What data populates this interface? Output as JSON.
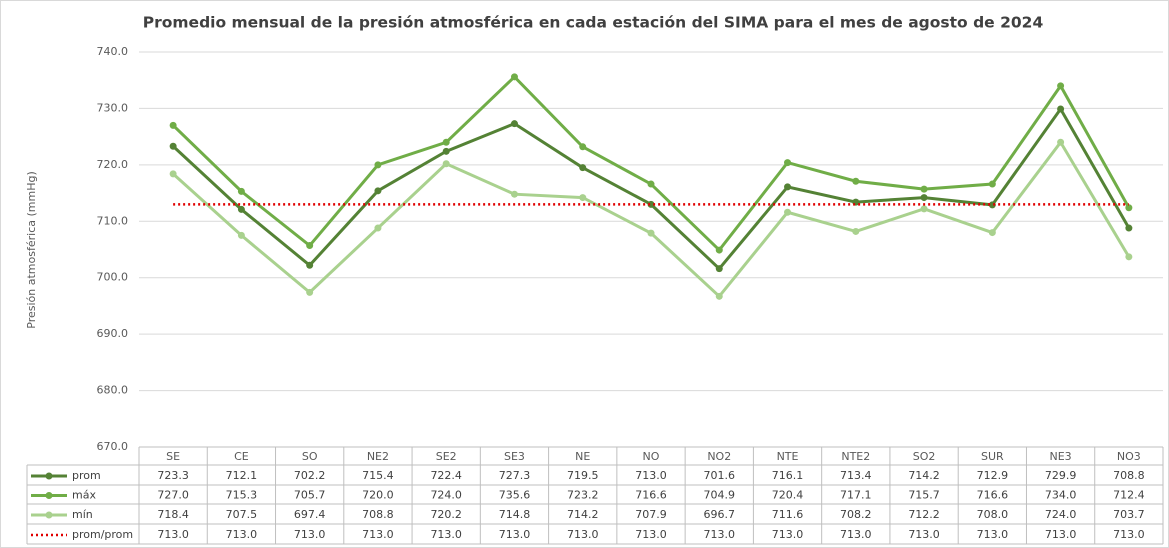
{
  "chart_data": {
    "type": "line",
    "title": "Promedio mensual de la presión atmosférica en cada estación del SIMA para el mes de agosto de 2024",
    "y_label": "Presión atmosférica (mmHg)",
    "categories": [
      "SE",
      "CE",
      "SO",
      "NE2",
      "SE2",
      "SE3",
      "NE",
      "NO",
      "NO2",
      "NTE",
      "NTE2",
      "SO2",
      "SUR",
      "NE3",
      "NO3"
    ],
    "series": [
      {
        "name": "prom",
        "color": "#548235",
        "markers": true,
        "line_style": "solid",
        "values": [
          723.3,
          712.1,
          702.2,
          715.4,
          722.4,
          727.3,
          719.5,
          713.0,
          701.6,
          716.1,
          713.4,
          714.2,
          712.9,
          729.9,
          708.8
        ],
        "value_labels": [
          "723.3",
          "712.1",
          "702.2",
          "715.4",
          "722.4",
          "727.3",
          "719.5",
          "713.0",
          "701.6",
          "716.1",
          "713.4",
          "714.2",
          "712.9",
          "729.9",
          "708.8"
        ]
      },
      {
        "name": "máx",
        "color": "#70ad47",
        "markers": true,
        "line_style": "solid",
        "values": [
          727.0,
          715.3,
          705.7,
          720.0,
          724.0,
          735.6,
          723.2,
          716.6,
          704.9,
          720.4,
          717.1,
          715.7,
          716.6,
          734.0,
          712.4
        ],
        "value_labels": [
          "727.0",
          "715.3",
          "705.7",
          "720.0",
          "724.0",
          "735.6",
          "723.2",
          "716.6",
          "704.9",
          "720.4",
          "717.1",
          "715.7",
          "716.6",
          "734.0",
          "712.4"
        ]
      },
      {
        "name": "mín",
        "color": "#a9d18e",
        "markers": true,
        "line_style": "solid",
        "values": [
          718.4,
          707.5,
          697.4,
          708.8,
          720.2,
          714.8,
          714.2,
          707.9,
          696.7,
          711.6,
          708.2,
          712.2,
          708.0,
          724.0,
          703.7
        ],
        "value_labels": [
          "718.4",
          "707.5",
          "697.4",
          "708.8",
          "720.2",
          "714.8",
          "714.2",
          "707.9",
          "696.7",
          "711.6",
          "708.2",
          "712.2",
          "708.0",
          "724.0",
          "703.7"
        ]
      },
      {
        "name": "prom/prom",
        "color": "#e00000",
        "markers": false,
        "line_style": "dotted",
        "values": [
          713.0,
          713.0,
          713.0,
          713.0,
          713.0,
          713.0,
          713.0,
          713.0,
          713.0,
          713.0,
          713.0,
          713.0,
          713.0,
          713.0,
          713.0
        ],
        "value_labels": [
          "713.0",
          "713.0",
          "713.0",
          "713.0",
          "713.0",
          "713.0",
          "713.0",
          "713.0",
          "713.0",
          "713.0",
          "713.0",
          "713.0",
          "713.0",
          "713.0",
          "713.0"
        ]
      }
    ],
    "ylim": [
      670,
      740
    ],
    "yticks": [
      {
        "value": 670,
        "label": "670.0"
      },
      {
        "value": 680,
        "label": "680.0"
      },
      {
        "value": 690,
        "label": "690.0"
      },
      {
        "value": 700,
        "label": "700.0"
      },
      {
        "value": 710,
        "label": "710.0"
      },
      {
        "value": 720,
        "label": "720.0"
      },
      {
        "value": 730,
        "label": "730.0"
      },
      {
        "value": 740,
        "label": "740.0"
      }
    ],
    "grid": true
  }
}
